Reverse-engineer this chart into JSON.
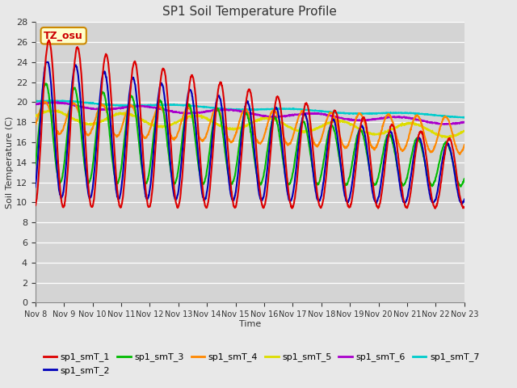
{
  "title": "SP1 Soil Temperature Profile",
  "xlabel": "Time",
  "ylabel": "Soil Temperature (C)",
  "ylim": [
    0,
    28
  ],
  "yticks": [
    0,
    2,
    4,
    6,
    8,
    10,
    12,
    14,
    16,
    18,
    20,
    22,
    24,
    26,
    28
  ],
  "background_color": "#e8e8e8",
  "plot_bg_color": "#d4d4d4",
  "grid_color": "#ffffff",
  "series_colors": {
    "sp1_smT_1": "#dd0000",
    "sp1_smT_2": "#0000bb",
    "sp1_smT_3": "#00bb00",
    "sp1_smT_4": "#ff8800",
    "sp1_smT_5": "#dddd00",
    "sp1_smT_6": "#aa00cc",
    "sp1_smT_7": "#00cccc"
  },
  "tz_label": "TZ_osu",
  "tz_box_color": "#ffffcc",
  "tz_border_color": "#cc8800",
  "tz_text_color": "#cc0000",
  "figsize": [
    6.4,
    4.8
  ],
  "dpi": 100
}
